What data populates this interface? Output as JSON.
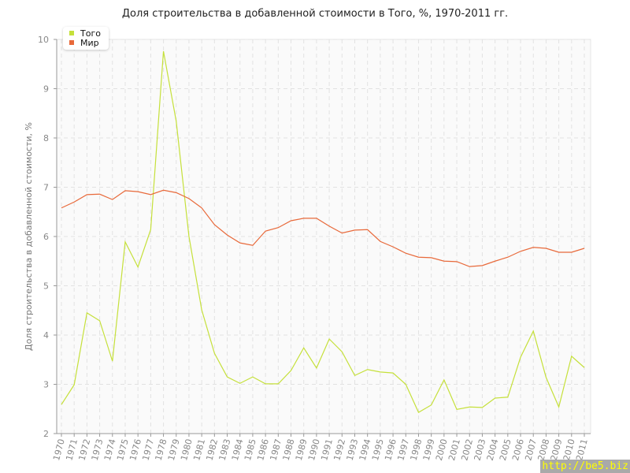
{
  "chart_data": {
    "type": "line",
    "title": "Доля строительства в добавленной стоимости в Того, %, 1970-2011 гг.",
    "xlabel": "",
    "ylabel": "Доля строительства в добавленной стоимости, %",
    "ylim": [
      2,
      10
    ],
    "yticks": [
      "2",
      "3",
      "4",
      "5",
      "6",
      "7",
      "8",
      "9",
      "10"
    ],
    "grid": true,
    "legend_position": "top-left",
    "x": [
      "1970",
      "1971",
      "1972",
      "1973",
      "1974",
      "1975",
      "1976",
      "1977",
      "1978",
      "1979",
      "1980",
      "1981",
      "1982",
      "1983",
      "1984",
      "1985",
      "1986",
      "1987",
      "1988",
      "1989",
      "1990",
      "1991",
      "1992",
      "1993",
      "1994",
      "1995",
      "1996",
      "1997",
      "1998",
      "1999",
      "2000",
      "2001",
      "2002",
      "2003",
      "2004",
      "2005",
      "2006",
      "2007",
      "2008",
      "2009",
      "2010",
      "2011"
    ],
    "series": [
      {
        "name": "Того",
        "color": "#c5e03a",
        "values": [
          2.59,
          2.99,
          4.45,
          4.29,
          3.47,
          5.89,
          5.38,
          6.14,
          9.76,
          8.34,
          6.0,
          4.51,
          3.63,
          3.15,
          3.02,
          3.15,
          3.01,
          3.01,
          3.28,
          3.74,
          3.33,
          3.92,
          3.66,
          3.18,
          3.3,
          3.25,
          3.23,
          3.0,
          2.43,
          2.58,
          3.09,
          2.49,
          2.54,
          2.53,
          2.72,
          2.74,
          3.55,
          4.08,
          3.14,
          2.54,
          3.57,
          3.34
        ]
      },
      {
        "name": "Мир",
        "color": "#e8693a",
        "values": [
          6.58,
          6.7,
          6.85,
          6.86,
          6.75,
          6.93,
          6.91,
          6.85,
          6.94,
          6.89,
          6.77,
          6.58,
          6.24,
          6.03,
          5.87,
          5.82,
          6.11,
          6.18,
          6.32,
          6.37,
          6.37,
          6.21,
          6.07,
          6.13,
          6.14,
          5.9,
          5.79,
          5.66,
          5.58,
          5.57,
          5.5,
          5.49,
          5.39,
          5.41,
          5.5,
          5.58,
          5.7,
          5.78,
          5.76,
          5.68,
          5.68,
          5.76
        ]
      }
    ]
  },
  "watermark": "http://be5.biz"
}
